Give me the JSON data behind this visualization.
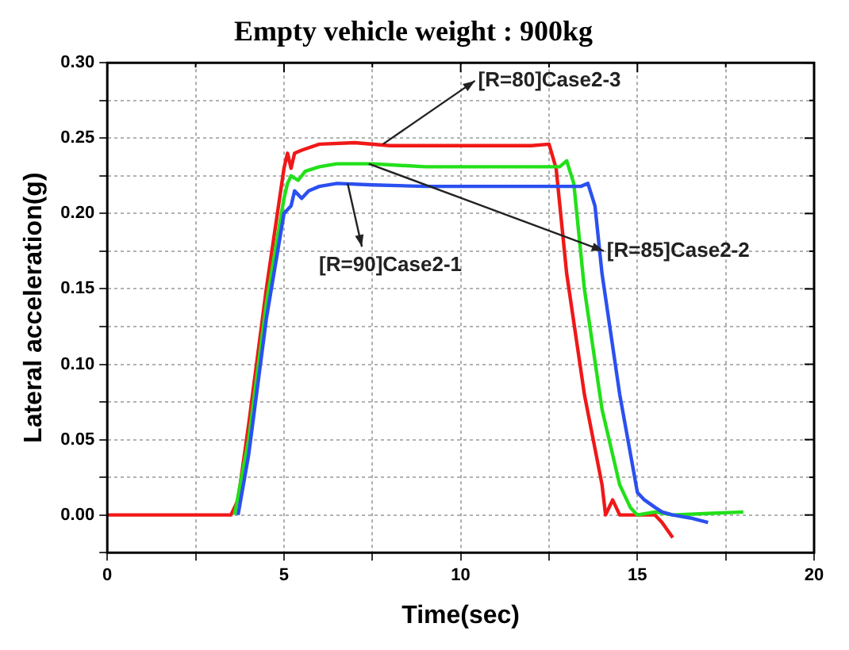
{
  "chart_data": {
    "type": "line",
    "title": "Empty vehicle weight : 900kg",
    "xlabel": "Time(sec)",
    "ylabel": "Lateral acceleration(g)",
    "xlim": [
      0,
      20
    ],
    "xticks": [
      0,
      {
        "value": 2.5,
        "label": null
      },
      5,
      {
        "value": 7.5,
        "label": null
      },
      10,
      {
        "value": 12.5,
        "label": null
      },
      15,
      {
        "value": 17.5,
        "label": null
      },
      20
    ],
    "ylim": [
      -0.025,
      0.3
    ],
    "yticks": [
      {
        "value": -0.025,
        "label": null
      },
      {
        "value": 0,
        "label": "0.00"
      },
      {
        "value": 0.025,
        "label": null
      },
      {
        "value": 0.05,
        "label": "0.05"
      },
      {
        "value": 0.075,
        "label": null
      },
      {
        "value": 0.1,
        "label": "0.10"
      },
      {
        "value": 0.125,
        "label": null
      },
      {
        "value": 0.15,
        "label": "0.15"
      },
      {
        "value": 0.175,
        "label": null
      },
      {
        "value": 0.2,
        "label": "0.20"
      },
      {
        "value": 0.225,
        "label": null
      },
      {
        "value": 0.25,
        "label": "0.25"
      },
      {
        "value": 0.275,
        "label": null
      },
      {
        "value": 0.3,
        "label": "0.30"
      }
    ],
    "grid": true,
    "legend": false,
    "marker": "none",
    "line_style": "solid",
    "series": [
      {
        "color": "#2b50f0",
        "x": [
          3.7,
          4.0,
          4.5,
          5.0,
          5.2,
          5.3,
          5.5,
          5.7,
          6.0,
          6.5,
          7.5,
          9,
          11,
          13.4,
          13.6,
          13.8,
          14.0,
          14.5,
          15.0,
          15.2,
          15.5,
          15.7,
          16,
          16.5,
          17
        ],
        "values": [
          0,
          0.04,
          0.13,
          0.2,
          0.205,
          0.215,
          0.21,
          0.215,
          0.218,
          0.22,
          0.219,
          0.218,
          0.218,
          0.218,
          0.22,
          0.205,
          0.16,
          0.08,
          0.015,
          0.01,
          0.005,
          0.002,
          0,
          -0.002,
          -0.005
        ]
      },
      {
        "color": "#22e01a",
        "x": [
          3.6,
          4.0,
          4.5,
          5.0,
          5.1,
          5.2,
          5.4,
          5.6,
          6.0,
          6.5,
          7.5,
          9,
          11,
          12.8,
          13.0,
          13.2,
          13.5,
          14.0,
          14.5,
          14.8,
          15.0,
          15.5,
          16,
          17,
          18
        ],
        "values": [
          0,
          0.05,
          0.14,
          0.21,
          0.22,
          0.225,
          0.222,
          0.228,
          0.231,
          0.233,
          0.233,
          0.231,
          0.231,
          0.231,
          0.235,
          0.22,
          0.15,
          0.07,
          0.02,
          0.005,
          0,
          0.002,
          0,
          0.001,
          0.002
        ]
      },
      {
        "color": "#f01818",
        "x": [
          0,
          3.5,
          3.7,
          4.0,
          4.5,
          5.0,
          5.1,
          5.2,
          5.3,
          5.5,
          6.0,
          7.0,
          8.0,
          10,
          12,
          12.5,
          12.7,
          13.0,
          13.5,
          14.0,
          14.1,
          14.3,
          14.5,
          15.0,
          15.5,
          15.7,
          16.0
        ],
        "values": [
          0,
          0,
          0.01,
          0.06,
          0.15,
          0.23,
          0.24,
          0.23,
          0.24,
          0.242,
          0.246,
          0.247,
          0.245,
          0.245,
          0.245,
          0.246,
          0.23,
          0.16,
          0.08,
          0.02,
          0.0,
          0.01,
          0.0,
          0.0,
          0.0,
          -0.005,
          -0.015
        ]
      }
    ],
    "annotations": [
      {
        "text": "[R=80]Case2-3",
        "x": 7.8,
        "y": 0.246
      },
      {
        "text": "[R=85]Case2-2",
        "x": 7.4,
        "y": 0.233
      },
      {
        "text": "[R=90]Case2-1",
        "x": 6.8,
        "y": 0.22
      }
    ]
  }
}
